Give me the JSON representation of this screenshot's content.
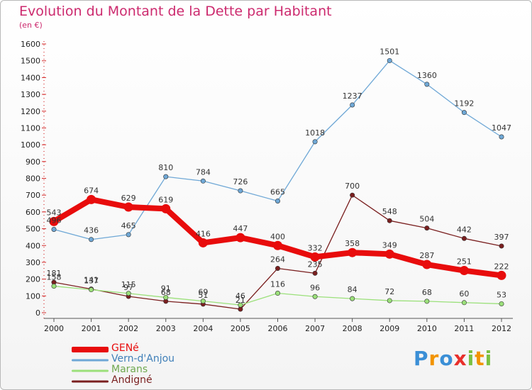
{
  "header": {
    "title": "Evolution du Montant de la Dette par Habitant",
    "subtitle": "(en €)"
  },
  "logo": {
    "letters": [
      "P",
      "r",
      "o",
      "x",
      "i",
      "t",
      "i"
    ],
    "colors": [
      "#3b8fd6",
      "#f29400",
      "#3b8fd6",
      "#e8302b",
      "#7bc142",
      "#f29400",
      "#7bc142"
    ]
  },
  "chart_data": {
    "type": "line",
    "title": "Evolution du Montant de la Dette par Habitant",
    "ylabel": "(en €)",
    "xlabel": "",
    "categories": [
      "2000",
      "2001",
      "2002",
      "2003",
      "2004",
      "2005",
      "2006",
      "2007",
      "2008",
      "2009",
      "2010",
      "2011",
      "2012"
    ],
    "ylim": [
      0,
      1600
    ],
    "yticks": [
      0,
      100,
      200,
      300,
      400,
      500,
      600,
      700,
      800,
      900,
      1000,
      1100,
      1200,
      1300,
      1400,
      1500,
      1600
    ],
    "grid": false,
    "legend_position": "bottom-left",
    "series": [
      {
        "name": "GENé",
        "color": "#e80c0c",
        "values": [
          543,
          674,
          629,
          619,
          416,
          447,
          400,
          332,
          358,
          349,
          287,
          251,
          222
        ]
      },
      {
        "name": "Vern-d'Anjou",
        "color": "#6fa8d6",
        "values": [
          496,
          436,
          465,
          810,
          784,
          726,
          665,
          1018,
          1237,
          1501,
          1360,
          1192,
          1047
        ]
      },
      {
        "name": "Marans",
        "color": "#9be07a",
        "values": [
          158,
          137,
          115,
          91,
          69,
          46,
          116,
          96,
          84,
          72,
          68,
          60,
          53
        ]
      },
      {
        "name": "Andigné",
        "color": "#7a1f1f",
        "values": [
          181,
          141,
          97,
          68,
          51,
          21,
          264,
          235,
          700,
          548,
          504,
          442,
          397
        ]
      }
    ]
  }
}
